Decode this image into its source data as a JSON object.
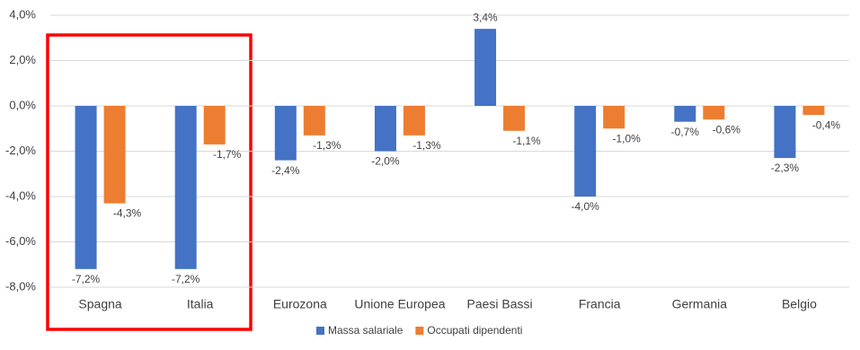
{
  "chart_data": {
    "type": "bar",
    "categories": [
      "Spagna",
      "Italia",
      "Eurozona",
      "Unione Europea",
      "Paesi Bassi",
      "Francia",
      "Germania",
      "Belgio"
    ],
    "series": [
      {
        "name": "Massa salariale",
        "color": "#4472c4",
        "values": [
          -7.2,
          -7.2,
          -2.4,
          -2.0,
          3.4,
          -4.0,
          -0.7,
          -2.3
        ],
        "value_labels": [
          "-7,2%",
          "-7,2%",
          "-2,4%",
          "-2,0%",
          "3,4%",
          "-4,0%",
          "-0,7%",
          "-2,3%"
        ]
      },
      {
        "name": "Occupati dipendenti",
        "color": "#ed7d31",
        "values": [
          -4.3,
          -1.7,
          -1.3,
          -1.3,
          -1.1,
          -1.0,
          -0.6,
          -0.4
        ],
        "value_labels": [
          "-4,3%",
          "-1,7%",
          "-1,3%",
          "-1,3%",
          "-1,1%",
          "-1,0%",
          "-0,6%",
          "-0,4%"
        ]
      }
    ],
    "ylim": [
      -8,
      4
    ],
    "yticks": [
      {
        "value": -8,
        "label": "-8,0%"
      },
      {
        "value": -6,
        "label": "-6,0%"
      },
      {
        "value": -4,
        "label": "-4,0%"
      },
      {
        "value": -2,
        "label": "-2,0%"
      },
      {
        "value": 0,
        "label": "0,0%"
      },
      {
        "value": 2,
        "label": "2,0%"
      },
      {
        "value": 4,
        "label": "4,0%"
      }
    ],
    "grid": true
  }
}
